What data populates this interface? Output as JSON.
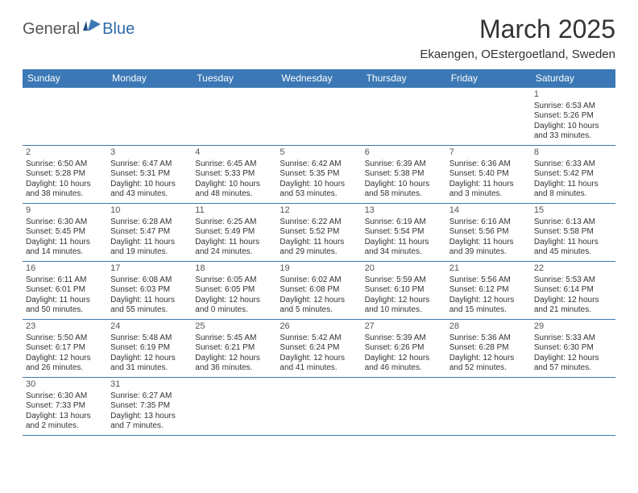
{
  "brand": {
    "general": "General",
    "blue": "Blue"
  },
  "title": "March 2025",
  "location": "Ekaengen, OEstergoetland, Sweden",
  "colors": {
    "header_bg": "#3b78b5",
    "header_text": "#ffffff",
    "grid_line": "#3b78b5",
    "brand_blue": "#2f6aa8",
    "body_text": "#333333"
  },
  "weekdays": [
    "Sunday",
    "Monday",
    "Tuesday",
    "Wednesday",
    "Thursday",
    "Friday",
    "Saturday"
  ],
  "weeks": [
    [
      null,
      null,
      null,
      null,
      null,
      null,
      {
        "n": "1",
        "sunrise": "Sunrise: 6:53 AM",
        "sunset": "Sunset: 5:26 PM",
        "dl1": "Daylight: 10 hours",
        "dl2": "and 33 minutes."
      }
    ],
    [
      {
        "n": "2",
        "sunrise": "Sunrise: 6:50 AM",
        "sunset": "Sunset: 5:28 PM",
        "dl1": "Daylight: 10 hours",
        "dl2": "and 38 minutes."
      },
      {
        "n": "3",
        "sunrise": "Sunrise: 6:47 AM",
        "sunset": "Sunset: 5:31 PM",
        "dl1": "Daylight: 10 hours",
        "dl2": "and 43 minutes."
      },
      {
        "n": "4",
        "sunrise": "Sunrise: 6:45 AM",
        "sunset": "Sunset: 5:33 PM",
        "dl1": "Daylight: 10 hours",
        "dl2": "and 48 minutes."
      },
      {
        "n": "5",
        "sunrise": "Sunrise: 6:42 AM",
        "sunset": "Sunset: 5:35 PM",
        "dl1": "Daylight: 10 hours",
        "dl2": "and 53 minutes."
      },
      {
        "n": "6",
        "sunrise": "Sunrise: 6:39 AM",
        "sunset": "Sunset: 5:38 PM",
        "dl1": "Daylight: 10 hours",
        "dl2": "and 58 minutes."
      },
      {
        "n": "7",
        "sunrise": "Sunrise: 6:36 AM",
        "sunset": "Sunset: 5:40 PM",
        "dl1": "Daylight: 11 hours",
        "dl2": "and 3 minutes."
      },
      {
        "n": "8",
        "sunrise": "Sunrise: 6:33 AM",
        "sunset": "Sunset: 5:42 PM",
        "dl1": "Daylight: 11 hours",
        "dl2": "and 8 minutes."
      }
    ],
    [
      {
        "n": "9",
        "sunrise": "Sunrise: 6:30 AM",
        "sunset": "Sunset: 5:45 PM",
        "dl1": "Daylight: 11 hours",
        "dl2": "and 14 minutes."
      },
      {
        "n": "10",
        "sunrise": "Sunrise: 6:28 AM",
        "sunset": "Sunset: 5:47 PM",
        "dl1": "Daylight: 11 hours",
        "dl2": "and 19 minutes."
      },
      {
        "n": "11",
        "sunrise": "Sunrise: 6:25 AM",
        "sunset": "Sunset: 5:49 PM",
        "dl1": "Daylight: 11 hours",
        "dl2": "and 24 minutes."
      },
      {
        "n": "12",
        "sunrise": "Sunrise: 6:22 AM",
        "sunset": "Sunset: 5:52 PM",
        "dl1": "Daylight: 11 hours",
        "dl2": "and 29 minutes."
      },
      {
        "n": "13",
        "sunrise": "Sunrise: 6:19 AM",
        "sunset": "Sunset: 5:54 PM",
        "dl1": "Daylight: 11 hours",
        "dl2": "and 34 minutes."
      },
      {
        "n": "14",
        "sunrise": "Sunrise: 6:16 AM",
        "sunset": "Sunset: 5:56 PM",
        "dl1": "Daylight: 11 hours",
        "dl2": "and 39 minutes."
      },
      {
        "n": "15",
        "sunrise": "Sunrise: 6:13 AM",
        "sunset": "Sunset: 5:58 PM",
        "dl1": "Daylight: 11 hours",
        "dl2": "and 45 minutes."
      }
    ],
    [
      {
        "n": "16",
        "sunrise": "Sunrise: 6:11 AM",
        "sunset": "Sunset: 6:01 PM",
        "dl1": "Daylight: 11 hours",
        "dl2": "and 50 minutes."
      },
      {
        "n": "17",
        "sunrise": "Sunrise: 6:08 AM",
        "sunset": "Sunset: 6:03 PM",
        "dl1": "Daylight: 11 hours",
        "dl2": "and 55 minutes."
      },
      {
        "n": "18",
        "sunrise": "Sunrise: 6:05 AM",
        "sunset": "Sunset: 6:05 PM",
        "dl1": "Daylight: 12 hours",
        "dl2": "and 0 minutes."
      },
      {
        "n": "19",
        "sunrise": "Sunrise: 6:02 AM",
        "sunset": "Sunset: 6:08 PM",
        "dl1": "Daylight: 12 hours",
        "dl2": "and 5 minutes."
      },
      {
        "n": "20",
        "sunrise": "Sunrise: 5:59 AM",
        "sunset": "Sunset: 6:10 PM",
        "dl1": "Daylight: 12 hours",
        "dl2": "and 10 minutes."
      },
      {
        "n": "21",
        "sunrise": "Sunrise: 5:56 AM",
        "sunset": "Sunset: 6:12 PM",
        "dl1": "Daylight: 12 hours",
        "dl2": "and 15 minutes."
      },
      {
        "n": "22",
        "sunrise": "Sunrise: 5:53 AM",
        "sunset": "Sunset: 6:14 PM",
        "dl1": "Daylight: 12 hours",
        "dl2": "and 21 minutes."
      }
    ],
    [
      {
        "n": "23",
        "sunrise": "Sunrise: 5:50 AM",
        "sunset": "Sunset: 6:17 PM",
        "dl1": "Daylight: 12 hours",
        "dl2": "and 26 minutes."
      },
      {
        "n": "24",
        "sunrise": "Sunrise: 5:48 AM",
        "sunset": "Sunset: 6:19 PM",
        "dl1": "Daylight: 12 hours",
        "dl2": "and 31 minutes."
      },
      {
        "n": "25",
        "sunrise": "Sunrise: 5:45 AM",
        "sunset": "Sunset: 6:21 PM",
        "dl1": "Daylight: 12 hours",
        "dl2": "and 36 minutes."
      },
      {
        "n": "26",
        "sunrise": "Sunrise: 5:42 AM",
        "sunset": "Sunset: 6:24 PM",
        "dl1": "Daylight: 12 hours",
        "dl2": "and 41 minutes."
      },
      {
        "n": "27",
        "sunrise": "Sunrise: 5:39 AM",
        "sunset": "Sunset: 6:26 PM",
        "dl1": "Daylight: 12 hours",
        "dl2": "and 46 minutes."
      },
      {
        "n": "28",
        "sunrise": "Sunrise: 5:36 AM",
        "sunset": "Sunset: 6:28 PM",
        "dl1": "Daylight: 12 hours",
        "dl2": "and 52 minutes."
      },
      {
        "n": "29",
        "sunrise": "Sunrise: 5:33 AM",
        "sunset": "Sunset: 6:30 PM",
        "dl1": "Daylight: 12 hours",
        "dl2": "and 57 minutes."
      }
    ],
    [
      {
        "n": "30",
        "sunrise": "Sunrise: 6:30 AM",
        "sunset": "Sunset: 7:33 PM",
        "dl1": "Daylight: 13 hours",
        "dl2": "and 2 minutes."
      },
      {
        "n": "31",
        "sunrise": "Sunrise: 6:27 AM",
        "sunset": "Sunset: 7:35 PM",
        "dl1": "Daylight: 13 hours",
        "dl2": "and 7 minutes."
      },
      null,
      null,
      null,
      null,
      null
    ]
  ]
}
